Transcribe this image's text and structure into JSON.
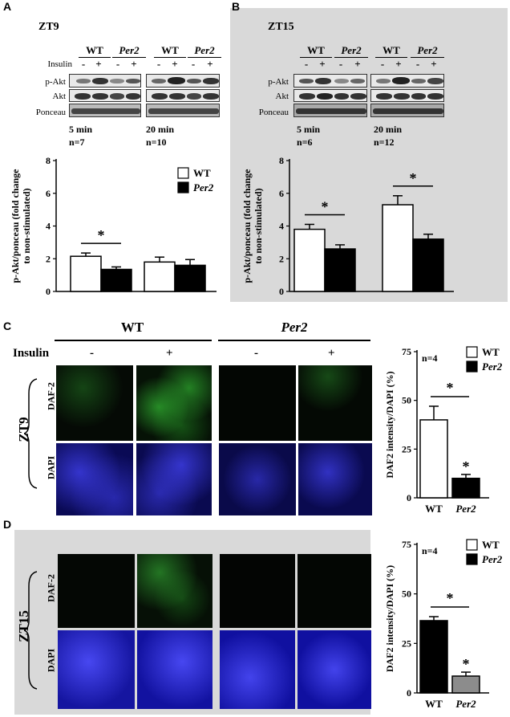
{
  "panels": {
    "A": {
      "letter": "A",
      "timepoint": "ZT9"
    },
    "B": {
      "letter": "B",
      "timepoint": "ZT15"
    },
    "C": {
      "letter": "C",
      "timepoint": "ZT9"
    },
    "D": {
      "letter": "D",
      "timepoint": "ZT15"
    }
  },
  "blot": {
    "group_wt": "WT",
    "group_per2": "Per2",
    "insulin_label": "Insulin",
    "minus": "-",
    "plus": "+",
    "rows": [
      "p-Akt",
      "Akt",
      "Ponceau"
    ],
    "A": {
      "left_time": "5 min",
      "left_n": "n=7",
      "right_time": "20 min",
      "right_n": "n=10"
    },
    "B": {
      "left_time": "5 min",
      "left_n": "n=6",
      "right_time": "20 min",
      "right_n": "n=12"
    }
  },
  "microscopy": {
    "insulin_label": "Insulin",
    "wt": "WT",
    "per2": "Per2",
    "minus": "-",
    "plus": "+",
    "row_daf": "DAF-2",
    "row_dapi": "DAPI",
    "note_n": "n=4"
  },
  "colors": {
    "panel_bg_gray": "#d9d9d9",
    "bar_white": "#ffffff",
    "bar_black": "#000000",
    "bar_gray": "#8c8c8c",
    "daf_green": "#2fd12f",
    "dapi_blue": "#1a1ae6"
  },
  "chart_data": [
    {
      "id": "A",
      "type": "bar",
      "ylabel": "p-Akt/ponceau (fold change to non-stimulated)",
      "ylim": [
        0,
        8
      ],
      "yticks": [
        0,
        2,
        4,
        6,
        8
      ],
      "series": [
        {
          "name": "WT",
          "values": [
            2.15,
            1.8
          ],
          "errors": [
            0.2,
            0.3
          ]
        },
        {
          "name": "Per2",
          "values": [
            1.35,
            1.6
          ],
          "errors": [
            0.15,
            0.35
          ]
        }
      ],
      "legend": [
        "WT",
        "Per2"
      ],
      "legend_position": "top-right",
      "significance": [
        {
          "group": 0,
          "label": "*"
        }
      ]
    },
    {
      "id": "B",
      "type": "bar",
      "ylabel": "p-Akt/ponceau (fold change to non-stimulated)",
      "ylim": [
        0,
        8
      ],
      "yticks": [
        0,
        2,
        4,
        6,
        8
      ],
      "series": [
        {
          "name": "WT",
          "values": [
            3.8,
            5.3
          ],
          "errors": [
            0.3,
            0.55
          ]
        },
        {
          "name": "Per2",
          "values": [
            2.6,
            3.2
          ],
          "errors": [
            0.25,
            0.3
          ]
        }
      ],
      "significance": [
        {
          "group": 0,
          "label": "*"
        },
        {
          "group": 1,
          "label": "*"
        }
      ]
    },
    {
      "id": "C",
      "type": "bar",
      "categories": [
        "WT",
        "Per2"
      ],
      "ylabel": "DAF2 intensity/DAPI (%)",
      "ylim": [
        0,
        75
      ],
      "yticks": [
        0,
        25,
        50,
        75
      ],
      "values": [
        40,
        10
      ],
      "errors": [
        7,
        2
      ],
      "legend": [
        "WT",
        "Per2"
      ],
      "legend_position": "top-right",
      "annotation": "n=4",
      "significance": [
        {
          "bracket": true,
          "label": "*"
        },
        {
          "bar": 1,
          "label": "*"
        }
      ]
    },
    {
      "id": "D",
      "type": "bar",
      "categories": [
        "WT",
        "Per2"
      ],
      "ylabel": "DAF2 intensity/DAPI (%)",
      "ylim": [
        0,
        75
      ],
      "yticks": [
        0,
        25,
        50,
        75
      ],
      "values": [
        36.5,
        8.5
      ],
      "errors": [
        2,
        2
      ],
      "legend": [
        "WT",
        "Per2"
      ],
      "legend_position": "top-right",
      "annotation": "n=4",
      "significance": [
        {
          "bracket": true,
          "label": "*"
        },
        {
          "bar": 1,
          "label": "*"
        }
      ]
    }
  ]
}
